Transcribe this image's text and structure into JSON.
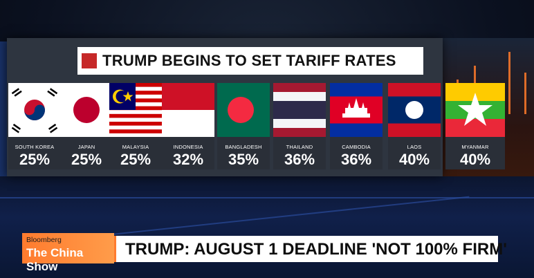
{
  "title": "TRUMP BEGINS TO SET TARIFF RATES",
  "countries": [
    {
      "name": "SOUTH KOREA",
      "rate": "25%",
      "flag": "south-korea-flag"
    },
    {
      "name": "JAPAN",
      "rate": "25%",
      "flag": "japan-flag"
    },
    {
      "name": "MALAYSIA",
      "rate": "25%",
      "flag": "malaysia-flag"
    },
    {
      "name": "INDONESIA",
      "rate": "32%",
      "flag": "indonesia-flag"
    },
    {
      "name": "BANGLADESH",
      "rate": "35%",
      "flag": "bangladesh-flag"
    },
    {
      "name": "THAILAND",
      "rate": "36%",
      "flag": "thailand-flag"
    },
    {
      "name": "CAMBODIA",
      "rate": "36%",
      "flag": "cambodia-flag"
    },
    {
      "name": "LAOS",
      "rate": "40%",
      "flag": "laos-flag"
    },
    {
      "name": "MYANMAR",
      "rate": "40%",
      "flag": "myanmar-flag"
    }
  ],
  "brand": {
    "top": "Bloomberg",
    "show": "The China Show"
  },
  "ticker": "TRUMP: AUGUST 1 DEADLINE 'NOT 100% FIRM'",
  "colors": {
    "accent": "#ff7b2e",
    "title_square": "#c62828"
  }
}
